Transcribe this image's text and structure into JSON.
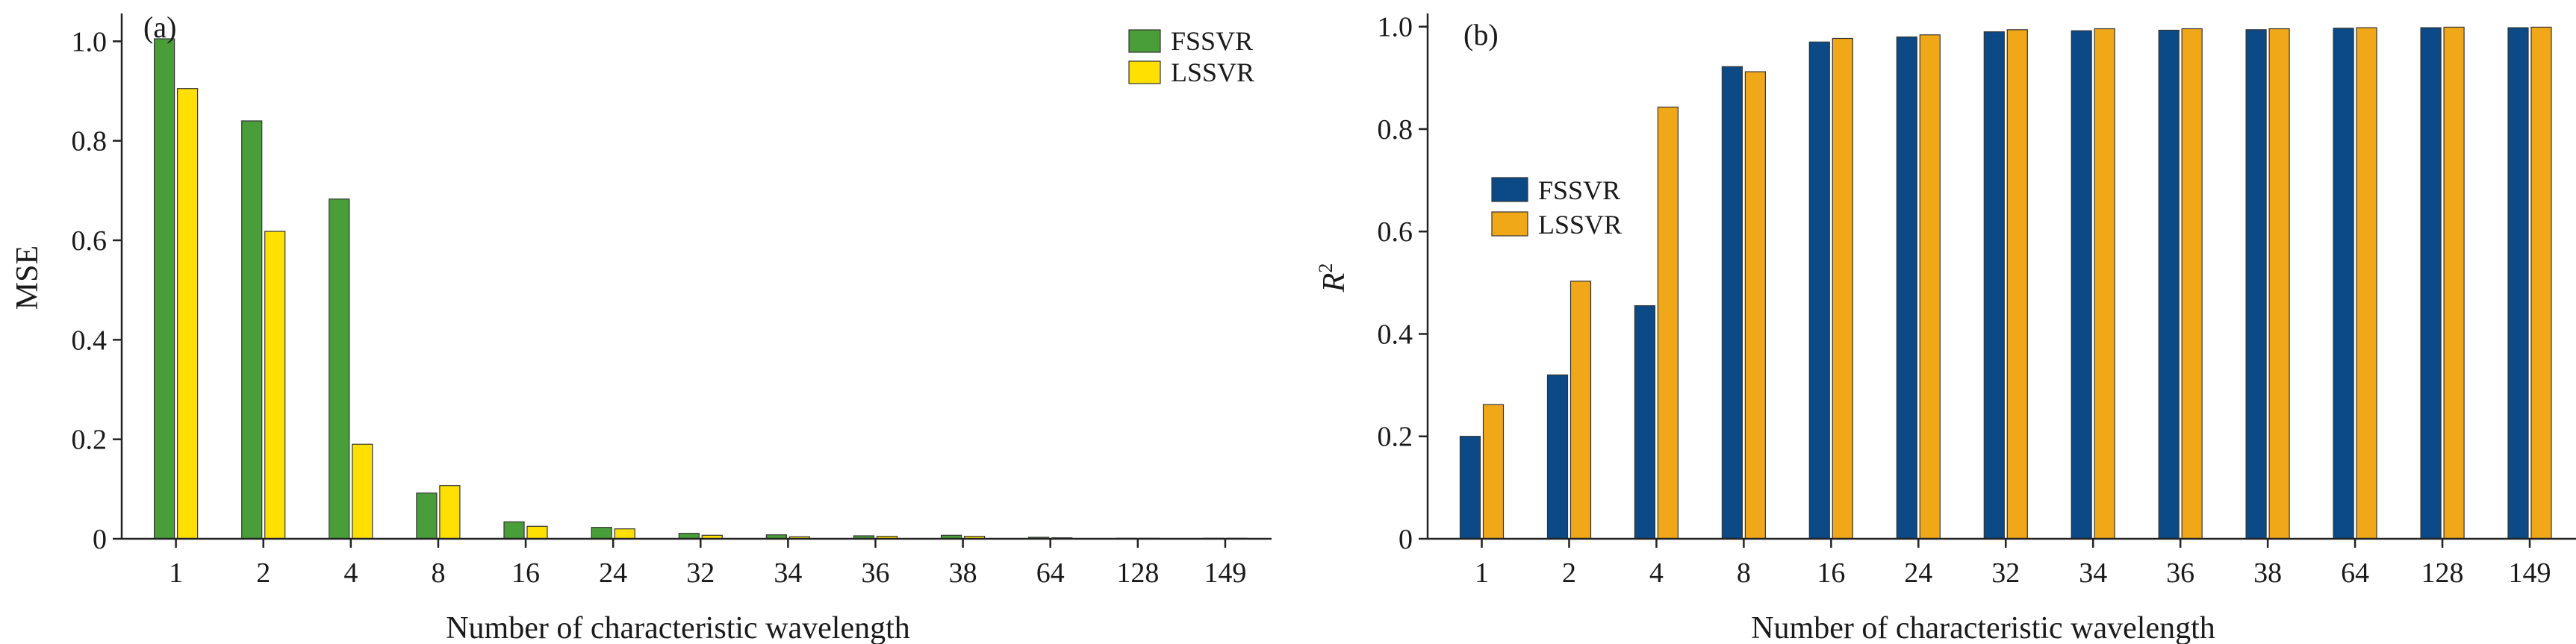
{
  "chart_data": [
    {
      "type": "bar",
      "panel_label": "(a)",
      "xlabel": "Number of characteristic wavelength",
      "ylabel": "MSE",
      "categories": [
        "1",
        "2",
        "4",
        "8",
        "16",
        "24",
        "32",
        "34",
        "36",
        "38",
        "64",
        "128",
        "149"
      ],
      "series": [
        {
          "name": "FSSVR",
          "color": "#4a9e3a",
          "values": [
            1.005,
            0.84,
            0.683,
            0.092,
            0.034,
            0.023,
            0.011,
            0.008,
            0.006,
            0.007,
            0.003,
            0.001,
            0.001
          ]
        },
        {
          "name": "LSSVR",
          "color": "#ffe000",
          "values": [
            0.905,
            0.618,
            0.19,
            0.107,
            0.025,
            0.02,
            0.007,
            0.004,
            0.005,
            0.005,
            0.002,
            0.001,
            0.001
          ]
        }
      ],
      "ylim": [
        0,
        1.05
      ],
      "yticks": [
        "0",
        "0.2",
        "0.4",
        "0.6",
        "0.8",
        "1.0"
      ],
      "legend_position": "top-right",
      "grid": false
    },
    {
      "type": "bar",
      "panel_label": "(b)",
      "xlabel": "Number of characteristic wavelength",
      "ylabel": "R2",
      "ylabel_display": {
        "base": "R",
        "sup": "2"
      },
      "categories": [
        "1",
        "2",
        "4",
        "8",
        "16",
        "24",
        "32",
        "34",
        "36",
        "38",
        "64",
        "128",
        "149"
      ],
      "series": [
        {
          "name": "FSSVR",
          "color": "#0b4a86",
          "values": [
            0.2,
            0.32,
            0.455,
            0.922,
            0.97,
            0.98,
            0.99,
            0.992,
            0.993,
            0.994,
            0.997,
            0.998,
            0.998
          ]
        },
        {
          "name": "LSSVR",
          "color": "#f0a818",
          "values": [
            0.262,
            0.503,
            0.843,
            0.912,
            0.977,
            0.984,
            0.994,
            0.996,
            0.996,
            0.996,
            0.998,
            0.999,
            0.999
          ]
        }
      ],
      "ylim": [
        0,
        1.02
      ],
      "yticks": [
        "0",
        "0.2",
        "0.4",
        "0.6",
        "0.8",
        "1.0"
      ],
      "legend_position": "upper-left",
      "grid": false
    }
  ]
}
